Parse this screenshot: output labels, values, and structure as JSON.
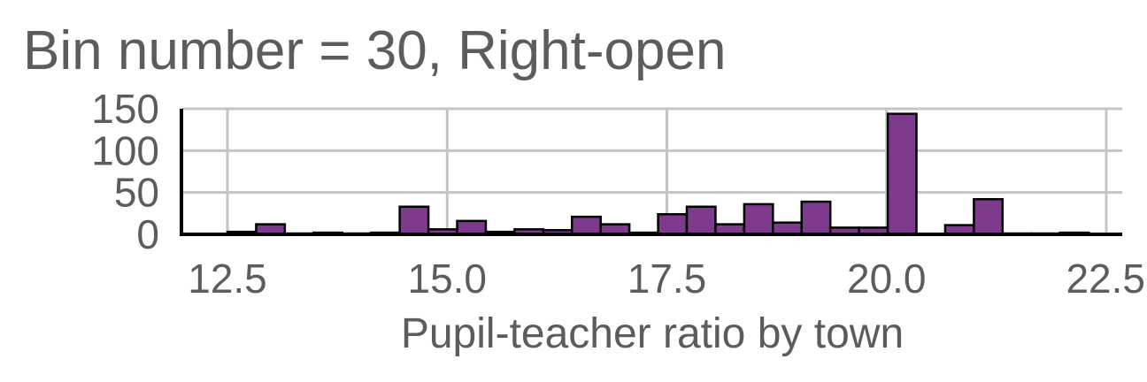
{
  "chart_data": {
    "type": "bar",
    "title": "Bin number = 30, Right-open",
    "xlabel": "Pupil-teacher ratio by town",
    "ylabel": "",
    "xlim": [
      12.0,
      22.5
    ],
    "ylim": [
      0,
      150
    ],
    "x_ticks": [
      12.5,
      15.0,
      17.5,
      20.0,
      22.5
    ],
    "x_tick_labels": [
      "12.5",
      "15.0",
      "17.5",
      "20.0",
      "22.5"
    ],
    "y_ticks": [
      0,
      50,
      100,
      150
    ],
    "y_tick_labels": [
      "0",
      "50",
      "100",
      "150"
    ],
    "bin_width": 0.32667,
    "bin_start": 12.5,
    "values": [
      3,
      12,
      1,
      2,
      1,
      2,
      33,
      6,
      16,
      3,
      6,
      5,
      21,
      12,
      2,
      24,
      33,
      12,
      36,
      14,
      39,
      8,
      8,
      144,
      0,
      11,
      42,
      1,
      1,
      2
    ],
    "grid": true,
    "legend": "none",
    "bar_color": "#7e3a8d",
    "bar_edge_color": "#000000"
  }
}
